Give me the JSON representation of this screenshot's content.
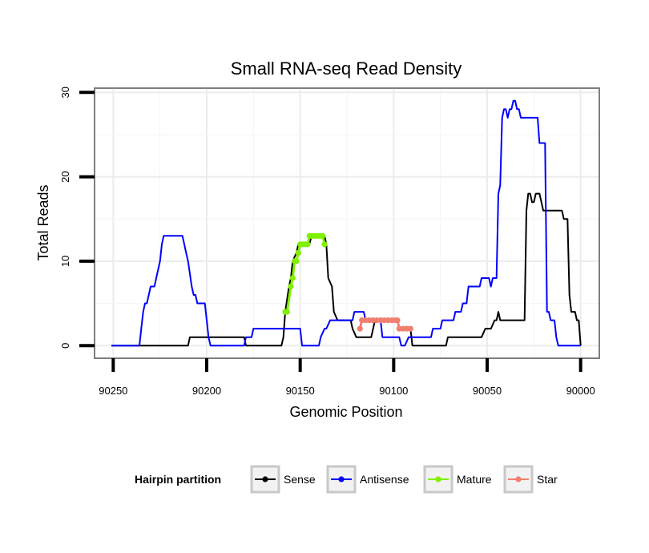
{
  "chart_data": {
    "type": "line",
    "title": "Small RNA-seq Read Density",
    "xlabel": "Genomic Position",
    "ylabel": "Total Reads",
    "xlim": [
      90260,
      89990
    ],
    "ylim": [
      -1.5,
      30.5
    ],
    "x_reversed": true,
    "x_ticks": [
      90250,
      90200,
      90150,
      90100,
      90050,
      90000
    ],
    "y_ticks": [
      0,
      10,
      20,
      30
    ],
    "x_tick_labels": [
      "90250",
      "90200",
      "90150",
      "90100",
      "90050",
      "90000"
    ],
    "y_tick_labels": [
      "0",
      "10",
      "20",
      "30"
    ],
    "grid": true,
    "legend": {
      "title": "Hairpin partition",
      "placement": "bottom",
      "entries": [
        "Sense",
        "Antisense",
        "Mature",
        "Star"
      ]
    },
    "series": [
      {
        "name": "Sense",
        "color": "#000000",
        "style": "line",
        "points": [
          [
            90251,
            0
          ],
          [
            90210,
            0
          ],
          [
            90209,
            1
          ],
          [
            90180,
            1
          ],
          [
            90179,
            0
          ],
          [
            90160,
            0
          ],
          [
            90159,
            1
          ],
          [
            90158,
            4
          ],
          [
            90156,
            7
          ],
          [
            90155,
            8
          ],
          [
            90154,
            10
          ],
          [
            90152,
            11
          ],
          [
            90151,
            12
          ],
          [
            90145,
            12
          ],
          [
            90144,
            13
          ],
          [
            90137,
            13
          ],
          [
            90136,
            12
          ],
          [
            90135,
            8
          ],
          [
            90133,
            7
          ],
          [
            90132,
            4
          ],
          [
            90130,
            3
          ],
          [
            90123,
            3
          ],
          [
            90122,
            2
          ],
          [
            90120,
            1
          ],
          [
            90112,
            1
          ],
          [
            90111,
            2
          ],
          [
            90110,
            3
          ],
          [
            90098,
            3
          ],
          [
            90097,
            2
          ],
          [
            90091,
            2
          ],
          [
            90090,
            0
          ],
          [
            90072,
            0
          ],
          [
            90071,
            1
          ],
          [
            90053,
            1
          ],
          [
            90051,
            2
          ],
          [
            90048,
            2
          ],
          [
            90046,
            3
          ],
          [
            90045,
            3
          ],
          [
            90044,
            4
          ],
          [
            90043,
            3
          ],
          [
            90030,
            3
          ],
          [
            90029,
            16
          ],
          [
            90028,
            18
          ],
          [
            90027,
            18
          ],
          [
            90026,
            17
          ],
          [
            90025,
            17
          ],
          [
            90024,
            18
          ],
          [
            90022,
            18
          ],
          [
            90021,
            17
          ],
          [
            90020,
            16
          ],
          [
            90010,
            16
          ],
          [
            90009,
            15
          ],
          [
            90007,
            15
          ],
          [
            90006,
            6
          ],
          [
            90005,
            4
          ],
          [
            90003,
            4
          ],
          [
            90002,
            3
          ],
          [
            90001,
            3
          ],
          [
            90000,
            0
          ]
        ]
      },
      {
        "name": "Antisense",
        "color": "#0000ff",
        "style": "line",
        "points": [
          [
            90251,
            0
          ],
          [
            90236,
            0
          ],
          [
            90235,
            2
          ],
          [
            90234,
            4
          ],
          [
            90233,
            5
          ],
          [
            90232,
            5
          ],
          [
            90231,
            6
          ],
          [
            90230,
            7
          ],
          [
            90228,
            7
          ],
          [
            90227,
            8
          ],
          [
            90225,
            10
          ],
          [
            90224,
            12
          ],
          [
            90223,
            13
          ],
          [
            90213,
            13
          ],
          [
            90212,
            12
          ],
          [
            90211,
            11
          ],
          [
            90210,
            10
          ],
          [
            90208,
            7
          ],
          [
            90207,
            6
          ],
          [
            90206,
            6
          ],
          [
            90205,
            5
          ],
          [
            90201,
            5
          ],
          [
            90200,
            3
          ],
          [
            90199,
            1
          ],
          [
            90198,
            0
          ],
          [
            90180,
            0
          ],
          [
            90179,
            1
          ],
          [
            90176,
            1
          ],
          [
            90175,
            2
          ],
          [
            90150,
            2
          ],
          [
            90149,
            0
          ],
          [
            90140,
            0
          ],
          [
            90139,
            1
          ],
          [
            90137,
            2
          ],
          [
            90136,
            2
          ],
          [
            90134,
            3
          ],
          [
            90124,
            3
          ],
          [
            90122,
            3
          ],
          [
            90121,
            4
          ],
          [
            90116,
            4
          ],
          [
            90115,
            3
          ],
          [
            90107,
            3
          ],
          [
            90106,
            1
          ],
          [
            90097,
            1
          ],
          [
            90096,
            0
          ],
          [
            90094,
            0
          ],
          [
            90092,
            1
          ],
          [
            90080,
            1
          ],
          [
            90079,
            2
          ],
          [
            90075,
            2
          ],
          [
            90074,
            3
          ],
          [
            90068,
            3
          ],
          [
            90067,
            4
          ],
          [
            90064,
            4
          ],
          [
            90063,
            5
          ],
          [
            90061,
            5
          ],
          [
            90060,
            7
          ],
          [
            90054,
            7
          ],
          [
            90053,
            8
          ],
          [
            90049,
            8
          ],
          [
            90048,
            7
          ],
          [
            90047,
            8
          ],
          [
            90045,
            8
          ],
          [
            90044,
            18
          ],
          [
            90043,
            19
          ],
          [
            90042,
            27
          ],
          [
            90041,
            28
          ],
          [
            90040,
            28
          ],
          [
            90039,
            27
          ],
          [
            90038,
            28
          ],
          [
            90037,
            28
          ],
          [
            90036,
            29
          ],
          [
            90035,
            29
          ],
          [
            90034,
            28
          ],
          [
            90033,
            28
          ],
          [
            90032,
            27
          ],
          [
            90023,
            27
          ],
          [
            90022,
            24
          ],
          [
            90019,
            24
          ],
          [
            90018,
            4
          ],
          [
            90017,
            4
          ],
          [
            90016,
            3
          ],
          [
            90014,
            3
          ],
          [
            90013,
            1
          ],
          [
            90012,
            0
          ],
          [
            90000,
            0
          ]
        ]
      },
      {
        "name": "Mature",
        "color": "#7ff000",
        "style": "points",
        "points": [
          [
            90158,
            4
          ],
          [
            90157,
            4
          ],
          [
            90155,
            7
          ],
          [
            90154,
            8
          ],
          [
            90153,
            10
          ],
          [
            90152,
            10
          ],
          [
            90151,
            11
          ],
          [
            90150,
            12
          ],
          [
            90149,
            12
          ],
          [
            90148,
            12
          ],
          [
            90147,
            12
          ],
          [
            90146,
            12
          ],
          [
            90145,
            13
          ],
          [
            90144,
            13
          ],
          [
            90143,
            13
          ],
          [
            90142,
            13
          ],
          [
            90141,
            13
          ],
          [
            90140,
            13
          ],
          [
            90139,
            13
          ],
          [
            90138,
            13
          ],
          [
            90137,
            12
          ]
        ]
      },
      {
        "name": "Star",
        "color": "#f07f70",
        "style": "points",
        "points": [
          [
            90118,
            2
          ],
          [
            90117,
            3
          ],
          [
            90115,
            3
          ],
          [
            90113,
            3
          ],
          [
            90111,
            3
          ],
          [
            90109,
            3
          ],
          [
            90107,
            3
          ],
          [
            90105,
            3
          ],
          [
            90103,
            3
          ],
          [
            90101,
            3
          ],
          [
            90099,
            3
          ],
          [
            90098,
            3
          ],
          [
            90097,
            2
          ],
          [
            90095,
            2
          ],
          [
            90093,
            2
          ],
          [
            90091,
            2
          ]
        ]
      }
    ]
  }
}
